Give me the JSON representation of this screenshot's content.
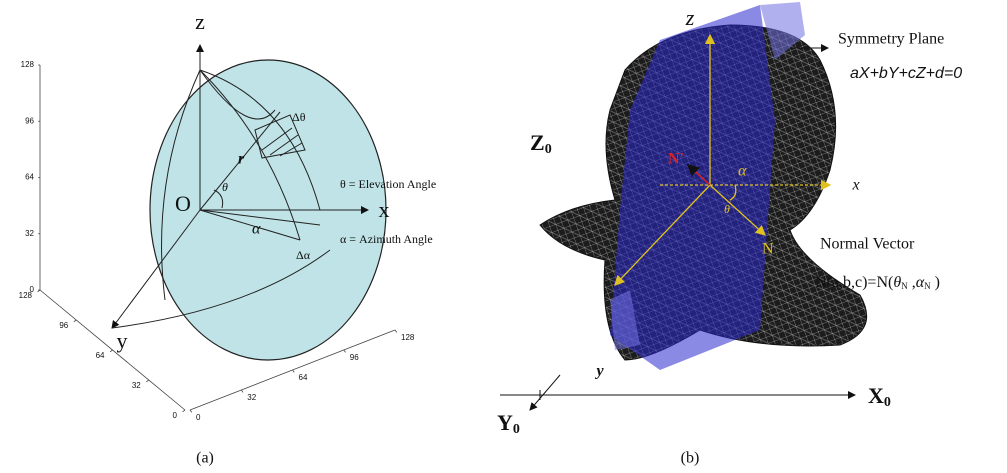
{
  "panel_a": {
    "caption": "(a)",
    "axis_z": "z",
    "axis_x": "x",
    "axis_y": "y",
    "origin": "O",
    "radius": "r",
    "theta": "θ",
    "alpha": "α",
    "delta_theta": "Δθ",
    "delta_alpha": "Δα",
    "elevation_legend": "θ = Elevation Angle",
    "azimuth_legend": "α = Azimuth Angle",
    "vertical_ticks": [
      "128",
      "96",
      "64",
      "32",
      "0"
    ],
    "left_ticks": [
      "128",
      "96",
      "64",
      "32",
      "0"
    ],
    "right_ticks": [
      "0",
      "32",
      "64",
      "96",
      "128"
    ]
  },
  "panel_b": {
    "caption": "(b)",
    "axis_z": "z",
    "axis_x": "x",
    "axis_y": "y",
    "frame_z": {
      "main": "Z",
      "sub": "0"
    },
    "frame_x": {
      "main": "X",
      "sub": "0"
    },
    "frame_y": {
      "main": "Y",
      "sub": "0"
    },
    "n_prime": "N'",
    "n": "N",
    "alpha": "α",
    "theta": "θ",
    "symmetry_plane": "Symmetry Plane",
    "plane_equation": "aX+bY+cZ+d=0",
    "normal_vector": "Normal Vector",
    "normal_formula": {
      "prefix": "N(a,b,c)=N(",
      "theta": "θ",
      "theta_sub": "N",
      "sep": " ,",
      "alpha": "α",
      "alpha_sub": "N",
      "suffix": " )"
    }
  }
}
